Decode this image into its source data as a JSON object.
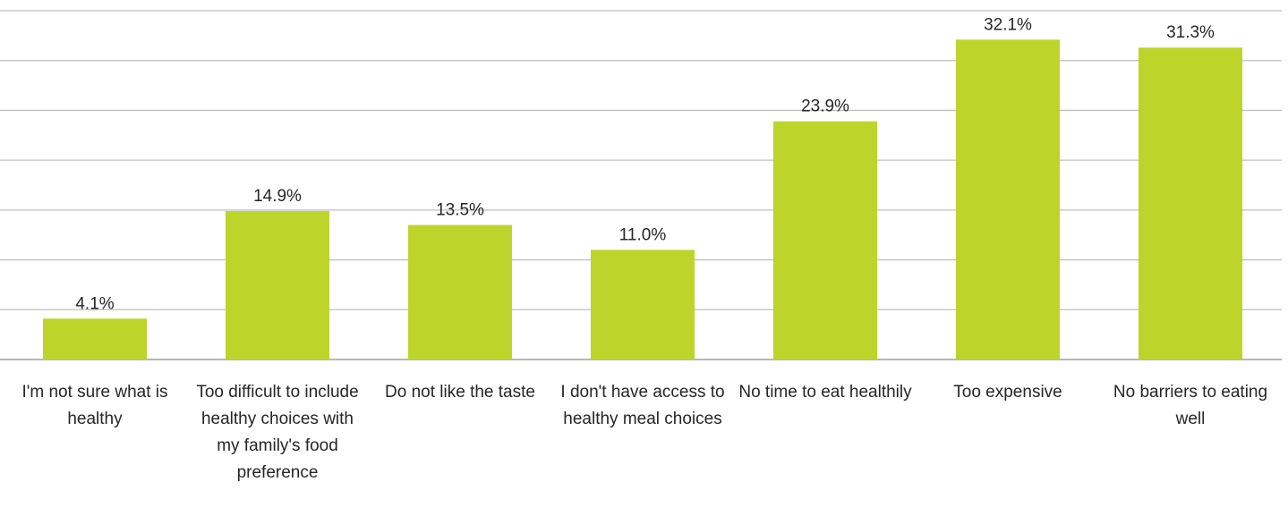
{
  "chart_data": {
    "type": "bar",
    "categories": [
      "I'm not sure what is healthy",
      "Too difficult to include healthy choices with my family's food preference",
      "Do not like the taste",
      "I don't have access to healthy meal choices",
      "No time to eat healthily",
      "Too expensive",
      "No barriers to eating well"
    ],
    "values": [
      4.1,
      14.9,
      13.5,
      11.0,
      23.9,
      32.1,
      31.3
    ],
    "value_labels": [
      "4.1%",
      "14.9%",
      "13.5%",
      "11.0%",
      "23.9%",
      "32.1%",
      "31.3%"
    ],
    "color": "#bdd42b",
    "ylim": [
      0,
      35
    ],
    "yticks": [
      0,
      5,
      10,
      15,
      20,
      25,
      30,
      35
    ],
    "grid": true
  }
}
